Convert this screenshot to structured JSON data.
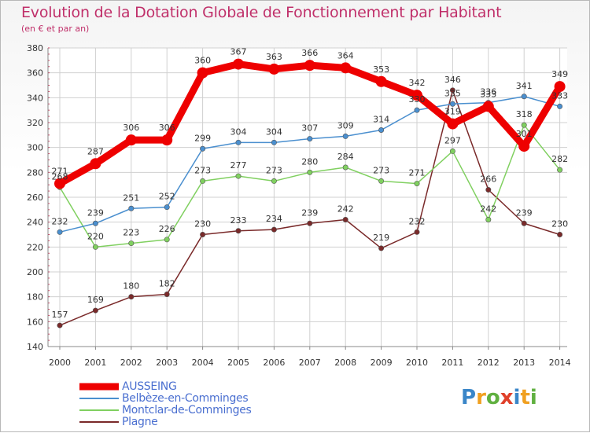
{
  "header": {
    "title": "Evolution de la Dotation Globale de Fonctionnement par Habitant",
    "subtitle": "(en € et par an)"
  },
  "brand": {
    "logo_text": "Proxiti"
  },
  "chart_data": {
    "type": "line",
    "title": "Evolution de la Dotation Globale de Fonctionnement par Habitant",
    "subtitle": "(en € et par an)",
    "xlabel": "",
    "ylabel": "",
    "ylim": [
      140,
      380
    ],
    "yticks": [
      140,
      160,
      180,
      200,
      220,
      240,
      260,
      280,
      300,
      320,
      340,
      360,
      380
    ],
    "x": [
      "2000",
      "2001",
      "2002",
      "2003",
      "2004",
      "2005",
      "2006",
      "2007",
      "2008",
      "2009",
      "2010",
      "2011",
      "2012",
      "2013",
      "2014"
    ],
    "grid": true,
    "legend_position": "bottom-left",
    "series": [
      {
        "name": "AUSSEING",
        "color": "#ee0000",
        "emphasis": true,
        "values": [
          271,
          287,
          306,
          306,
          360,
          367,
          363,
          366,
          364,
          353,
          342,
          319,
          333,
          301,
          349
        ],
        "labels": [
          "271",
          "287",
          "306",
          "306",
          "360",
          "367",
          "363",
          "366",
          "364",
          "353",
          "342",
          "319",
          "333",
          "301",
          "349"
        ]
      },
      {
        "name": "Belbèze-en-Comminges",
        "color": "#4a8fcf",
        "emphasis": false,
        "values": [
          232,
          239,
          251,
          252,
          299,
          304,
          304,
          307,
          309,
          314,
          330,
          335,
          336,
          341,
          333
        ],
        "labels": [
          "232",
          "239",
          "251",
          "252",
          "299",
          "304",
          "304",
          "307",
          "309",
          "314",
          "330",
          "335",
          "336",
          "341",
          "333"
        ]
      },
      {
        "name": "Montclar-de-Comminges",
        "color": "#80d060",
        "emphasis": false,
        "values": [
          268,
          220,
          223,
          226,
          273,
          277,
          273,
          280,
          284,
          273,
          271,
          297,
          242,
          318,
          282
        ],
        "labels": [
          "268",
          "220",
          "223",
          "226",
          "273",
          "277",
          "273",
          "280",
          "284",
          "273",
          "271",
          "297",
          "242",
          "318",
          "282"
        ]
      },
      {
        "name": "Plagne",
        "color": "#7a2a2a",
        "emphasis": false,
        "values": [
          157,
          169,
          180,
          182,
          230,
          233,
          234,
          239,
          242,
          219,
          232,
          346,
          266,
          239,
          230
        ],
        "labels": [
          "157",
          "169",
          "180",
          "182",
          "230",
          "233",
          "234",
          "239",
          "242",
          "219",
          "232",
          "346",
          "266",
          "239",
          "230"
        ]
      }
    ]
  }
}
